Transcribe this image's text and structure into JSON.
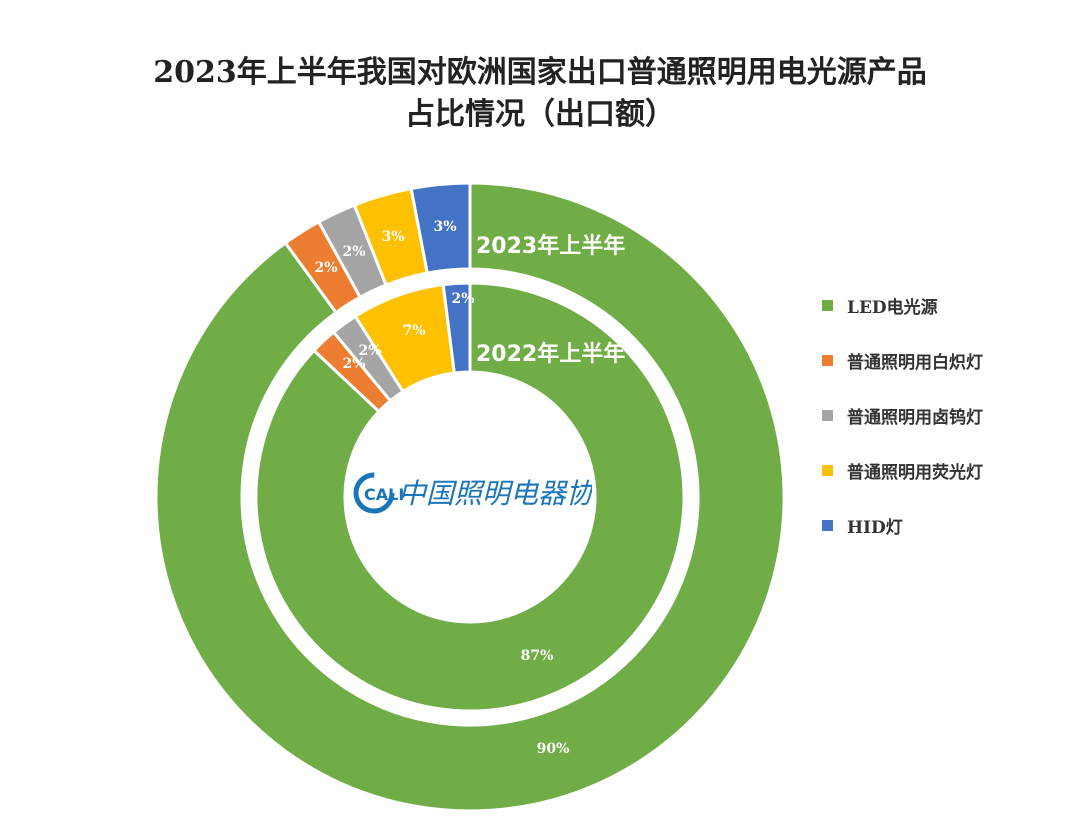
{
  "title": {
    "line1": "2023年上半年我国对欧洲国家出口普通照明用电光源产品",
    "line2": "占比情况（出口额）"
  },
  "chart_data": {
    "type": "donut",
    "unit": "%",
    "categories": [
      "LED电光源",
      "普通照明用白炽灯",
      "普通照明用卤钨灯",
      "普通照明用荧光灯",
      "HID灯"
    ],
    "colors": [
      "#70ad47",
      "#ed7d31",
      "#a5a5a5",
      "#ffc000",
      "#4472c4"
    ],
    "series": [
      {
        "name": "2023年上半年",
        "ring": "outer",
        "values": [
          90,
          2,
          2,
          3,
          3
        ],
        "labels": [
          "90%",
          "2%",
          "2%",
          "3%",
          "3%"
        ]
      },
      {
        "name": "2022年上半年",
        "ring": "inner",
        "values": [
          87,
          2,
          2,
          7,
          2
        ],
        "labels": [
          "87%",
          "2%",
          "2%",
          "7%",
          "2%"
        ]
      }
    ],
    "legend_position": "right"
  },
  "logo": {
    "mark": "CALI",
    "text": "中国照明电器协会"
  }
}
